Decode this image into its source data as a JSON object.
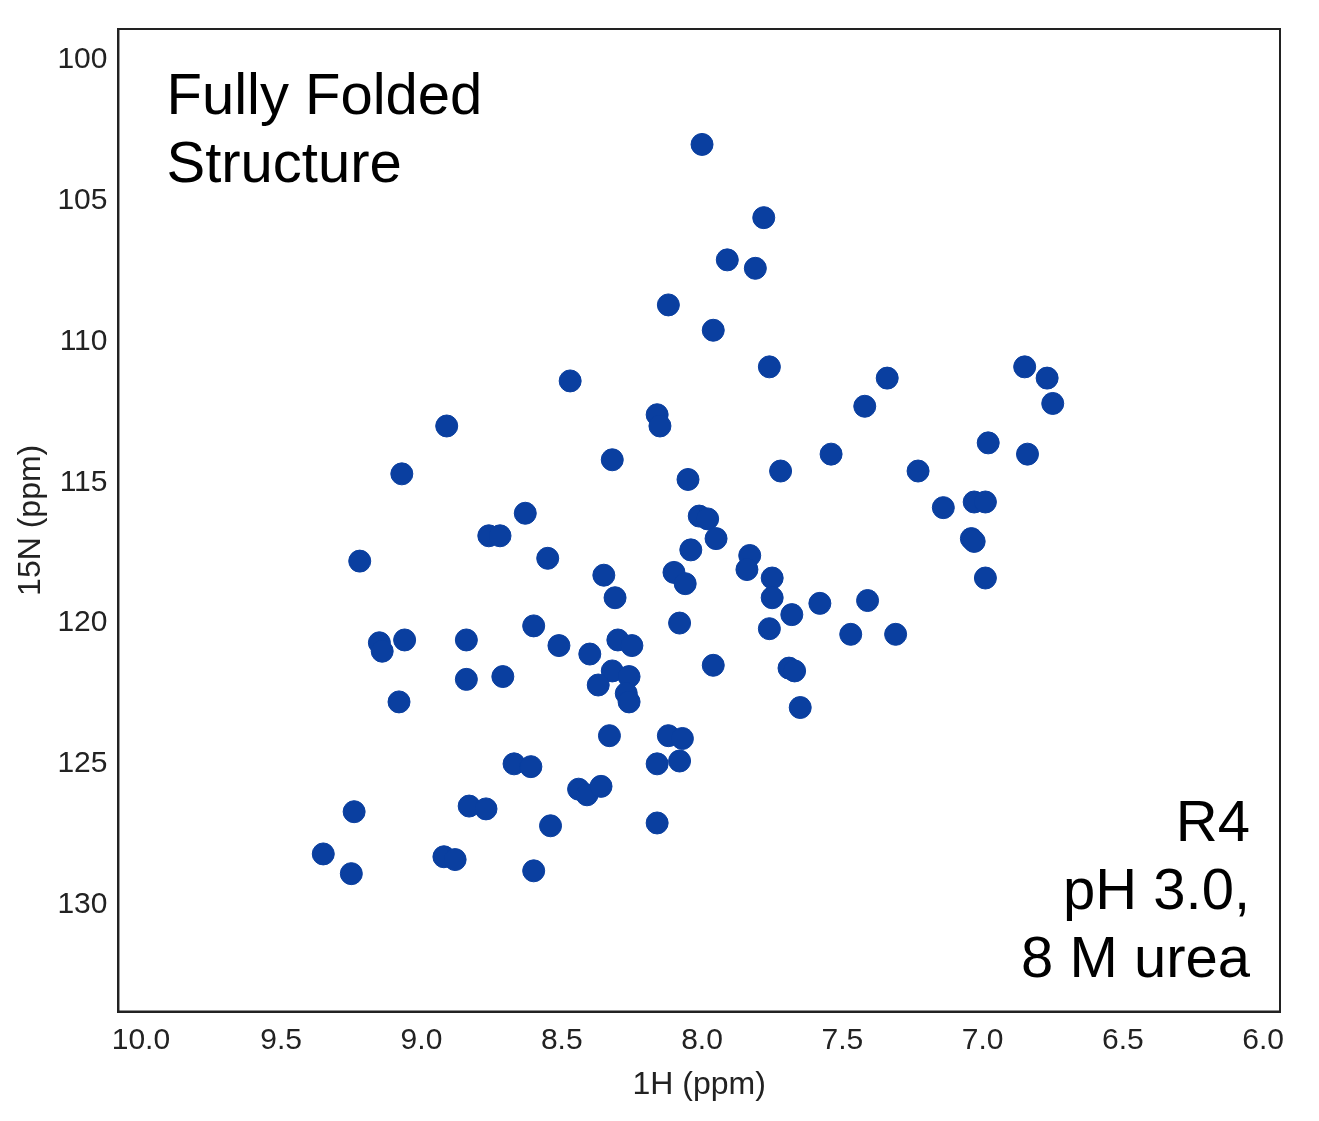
{
  "chart_data": {
    "type": "scatter",
    "xlabel": "1H (ppm)",
    "ylabel": "15N (ppm)",
    "xlim": [
      10.08,
      5.94
    ],
    "ylim": [
      133.8,
      98.9
    ],
    "xticks": [
      {
        "value": 10,
        "label": "10.0"
      },
      {
        "value": 9.5,
        "label": "9.5"
      },
      {
        "value": 9,
        "label": "9.0"
      },
      {
        "value": 8.5,
        "label": "8.5"
      },
      {
        "value": 8,
        "label": "8.0"
      },
      {
        "value": 7.5,
        "label": "7.5"
      },
      {
        "value": 7,
        "label": "7.0"
      },
      {
        "value": 6.5,
        "label": "6.5"
      },
      {
        "value": 6,
        "label": "6.0"
      }
    ],
    "yticks": [
      100,
      105,
      110,
      115,
      120,
      125,
      130
    ],
    "grid": false,
    "legend": false,
    "marker": "circle",
    "annotations": [
      "Fully Folded\nStructure",
      "R4\npH 3.0,\n8 M urea"
    ],
    "series": [
      {
        "color": "#0a3fa0",
        "x": [
          8.0,
          7.78,
          7.91,
          7.81,
          8.12,
          7.96,
          8.47,
          7.76,
          7.34,
          7.42,
          6.85,
          6.77,
          6.75,
          8.16,
          8.15,
          8.91,
          9.07,
          8.32,
          8.05,
          7.72,
          7.54,
          7.23,
          6.98,
          6.84,
          7.14,
          7.03,
          6.99,
          7.04,
          7.03,
          6.99,
          8.63,
          8.76,
          8.72,
          8.55,
          9.22,
          8.01,
          7.98,
          7.95,
          8.04,
          7.83,
          7.84,
          7.75,
          7.75,
          7.68,
          7.76,
          7.58,
          7.41,
          7.47,
          7.31,
          8.1,
          8.06,
          8.08,
          8.35,
          8.31,
          8.6,
          8.51,
          8.4,
          8.3,
          8.25,
          8.32,
          8.37,
          8.26,
          8.27,
          8.26,
          7.96,
          7.69,
          7.67,
          7.65,
          8.84,
          8.84,
          8.71,
          9.15,
          9.14,
          9.06,
          9.08,
          8.33,
          8.12,
          8.07,
          8.16,
          8.08,
          8.67,
          8.61,
          8.44,
          8.41,
          8.36,
          8.83,
          8.77,
          9.24,
          8.54,
          8.16,
          9.35,
          8.92,
          8.88,
          9.25,
          8.6
        ],
        "values": [
          103.0,
          105.6,
          107.1,
          107.4,
          108.7,
          109.6,
          111.4,
          110.9,
          111.3,
          112.3,
          110.9,
          111.3,
          112.2,
          112.6,
          113.0,
          113.0,
          114.7,
          114.2,
          114.9,
          114.6,
          114.0,
          114.6,
          113.6,
          114.0,
          115.9,
          115.7,
          115.7,
          117.0,
          117.1,
          118.4,
          116.1,
          116.9,
          116.9,
          117.7,
          117.8,
          116.2,
          116.3,
          117.0,
          117.4,
          117.6,
          118.1,
          118.4,
          119.1,
          119.7,
          120.2,
          119.3,
          119.2,
          120.4,
          120.4,
          118.2,
          118.6,
          120.0,
          118.3,
          119.1,
          120.1,
          120.8,
          121.1,
          120.6,
          120.8,
          121.7,
          122.2,
          121.9,
          122.5,
          122.8,
          121.5,
          121.6,
          121.7,
          123.0,
          120.6,
          122.0,
          121.9,
          120.7,
          121.0,
          120.6,
          122.8,
          124.0,
          124.0,
          124.1,
          125.0,
          124.9,
          125.0,
          125.1,
          125.9,
          126.1,
          125.8,
          126.5,
          126.6,
          126.7,
          127.2,
          127.1,
          128.2,
          128.3,
          128.4,
          128.9,
          128.8
        ]
      }
    ]
  }
}
